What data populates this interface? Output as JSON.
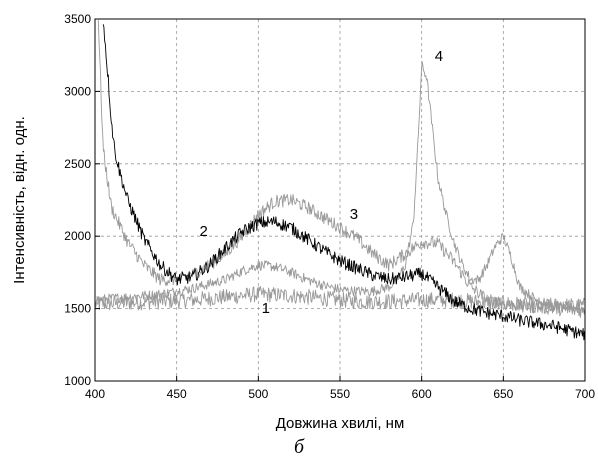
{
  "chart_data": {
    "type": "line",
    "title": "",
    "xlabel": "Довжина хвилі, нм",
    "ylabel": "Інтенсивність, відн. одн.",
    "xlim": [
      400,
      700
    ],
    "ylim": [
      1000,
      3500
    ],
    "xticks": [
      400,
      450,
      500,
      550,
      600,
      650,
      700
    ],
    "yticks": [
      1000,
      1500,
      2000,
      2500,
      3000,
      3500
    ],
    "grid": true,
    "legend": "none",
    "series": [
      {
        "label": "1",
        "label_at": [
          502,
          1470
        ],
        "color": "#999999",
        "noise": 55,
        "x": [
          400,
          420,
          440,
          460,
          480,
          500,
          520,
          540,
          560,
          580,
          600,
          620,
          640,
          660,
          680,
          700
        ],
        "y": [
          1530,
          1540,
          1550,
          1560,
          1580,
          1600,
          1590,
          1570,
          1550,
          1550,
          1560,
          1560,
          1540,
          1530,
          1520,
          1520
        ]
      },
      {
        "label": "2",
        "label_at": [
          464,
          2000
        ],
        "color": "#000000",
        "noise": 45,
        "x": [
          405,
          408,
          410,
          412,
          415,
          420,
          430,
          440,
          450,
          460,
          470,
          480,
          490,
          500,
          510,
          520,
          530,
          540,
          550,
          560,
          570,
          580,
          590,
          600,
          610,
          620,
          630,
          640,
          650,
          660,
          670,
          680,
          690,
          700
        ],
        "y": [
          3500,
          3100,
          2800,
          2600,
          2450,
          2250,
          1980,
          1800,
          1700,
          1720,
          1800,
          1920,
          2030,
          2090,
          2100,
          2060,
          1980,
          1900,
          1830,
          1780,
          1730,
          1700,
          1720,
          1740,
          1650,
          1550,
          1500,
          1470,
          1450,
          1420,
          1400,
          1380,
          1350,
          1320
        ]
      },
      {
        "label": "3",
        "label_at": [
          556,
          2120
        ],
        "color": "#999999",
        "noise": 45,
        "x": [
          402,
          405,
          410,
          420,
          430,
          440,
          450,
          460,
          470,
          480,
          490,
          500,
          510,
          520,
          530,
          540,
          550,
          560,
          570,
          580,
          590,
          600,
          610,
          620,
          630,
          640,
          650,
          660,
          670,
          680,
          690,
          700
        ],
        "y": [
          3500,
          2600,
          2200,
          1960,
          1800,
          1700,
          1700,
          1740,
          1800,
          1880,
          2000,
          2150,
          2240,
          2250,
          2200,
          2130,
          2060,
          1990,
          1880,
          1800,
          1880,
          1960,
          1950,
          1820,
          1650,
          1560,
          1530,
          1520,
          1510,
          1500,
          1490,
          1480
        ]
      },
      {
        "label": "4",
        "label_at": [
          608,
          3210
        ],
        "color": "#999999",
        "noise": 35,
        "x": [
          400,
          420,
          440,
          460,
          480,
          490,
          500,
          510,
          520,
          530,
          540,
          550,
          560,
          570,
          580,
          585,
          590,
          595,
          598,
          600,
          603,
          606,
          610,
          615,
          620,
          625,
          630,
          635,
          640,
          645,
          650,
          655,
          660,
          670,
          680,
          690,
          700
        ],
        "y": [
          1560,
          1580,
          1600,
          1640,
          1700,
          1760,
          1800,
          1790,
          1750,
          1700,
          1660,
          1630,
          1620,
          1620,
          1650,
          1700,
          1800,
          2100,
          2700,
          3180,
          3100,
          2800,
          2400,
          2150,
          1950,
          1800,
          1700,
          1700,
          1800,
          1930,
          2000,
          1850,
          1650,
          1560,
          1520,
          1510,
          1500
        ]
      }
    ],
    "caption": "б"
  }
}
